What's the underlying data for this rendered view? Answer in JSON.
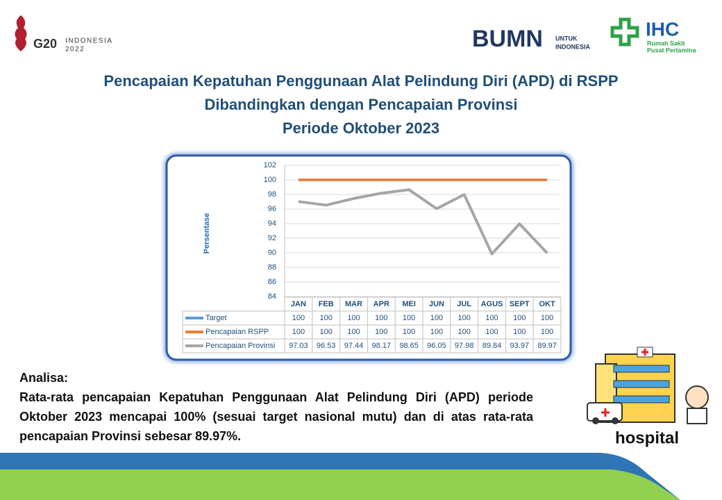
{
  "header": {
    "g20": "G20",
    "g20_sub1": "INDONESIA",
    "g20_sub2": "2022",
    "bumn": "BUMN",
    "bumn_sub1": "UNTUK",
    "bumn_sub2": "INDONESIA",
    "ihc": "IHC",
    "ihc_sub1": "Rumah Sakit",
    "ihc_sub2": "Pusat Pertamina"
  },
  "chart_data": {
    "type": "line",
    "title": [
      "Pencapaian Kepatuhan Penggunaan Alat Pelindung Diri (APD) di RSPP",
      "Dibandingkan dengan Pencapaian Provinsi",
      "Periode Oktober 2023"
    ],
    "y_label": "Persentase",
    "categories": [
      "JAN",
      "FEB",
      "MAR",
      "APR",
      "MEI",
      "JUN",
      "JUL",
      "AGUS",
      "SEPT",
      "OKT"
    ],
    "series": [
      {
        "name": "Target",
        "color": "#5b9bd5",
        "values": [
          100,
          100,
          100,
          100,
          100,
          100,
          100,
          100,
          100,
          100
        ]
      },
      {
        "name": "Pencapaian RSPP",
        "color": "#ed7d31",
        "values": [
          100,
          100,
          100,
          100,
          100,
          100,
          100,
          100,
          100,
          100
        ]
      },
      {
        "name": "Pencapaian Provinsi",
        "color": "#a5a5a5",
        "values": [
          97.03,
          96.53,
          97.44,
          98.17,
          98.65,
          96.05,
          97.98,
          89.84,
          93.97,
          89.97
        ]
      }
    ],
    "ylim": [
      84,
      102
    ],
    "yticks": [
      84,
      86,
      88,
      90,
      92,
      94,
      96,
      98,
      100,
      102
    ],
    "grid": true
  },
  "analysis": {
    "heading": "Analisa:",
    "text": "Rata-rata pencapaian Kepatuhan Penggunaan Alat Pelindung Diri (APD) periode Oktober 2023 mencapai 100% (sesuai target nasional mutu) dan di atas rata-rata pencapaian Provinsi sebesar 89.97%."
  },
  "illustration": {
    "label": "hospital"
  }
}
